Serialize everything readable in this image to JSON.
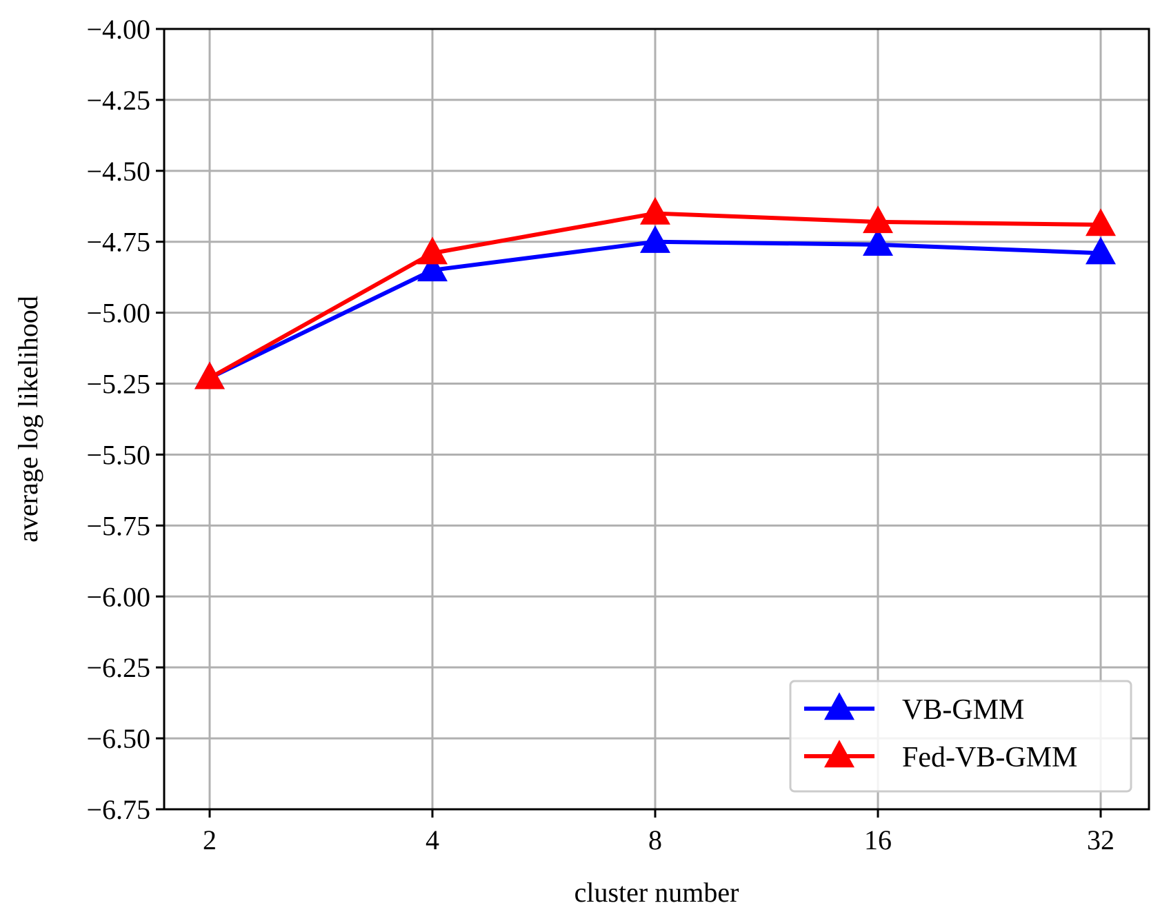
{
  "chart_data": {
    "type": "line",
    "categories": [
      "2",
      "4",
      "8",
      "16",
      "32"
    ],
    "series": [
      {
        "name": "VB-GMM",
        "color": "#0000ff",
        "marker": "triangle-up",
        "values": [
          -5.23,
          -4.85,
          -4.75,
          -4.76,
          -4.79
        ]
      },
      {
        "name": "Fed-VB-GMM",
        "color": "#ff0000",
        "marker": "triangle-up",
        "values": [
          -5.23,
          -4.79,
          -4.65,
          -4.68,
          -4.69
        ]
      }
    ],
    "xlabel": "cluster number",
    "ylabel": "average log likelihood",
    "ylim": [
      -6.75,
      -4.0
    ],
    "yticks": [
      -4.0,
      -4.25,
      -4.5,
      -4.75,
      -5.0,
      -5.25,
      -5.5,
      -5.75,
      -6.0,
      -6.25,
      -6.5,
      -6.75
    ],
    "ytick_labels": [
      "−4.00",
      "−4.25",
      "−4.50",
      "−4.75",
      "−5.00",
      "−5.25",
      "−5.50",
      "−5.75",
      "−6.00",
      "−6.25",
      "−6.50",
      "−6.75"
    ],
    "grid": true,
    "legend_position": "lower-right",
    "grid_color": "#b0b0b0"
  }
}
